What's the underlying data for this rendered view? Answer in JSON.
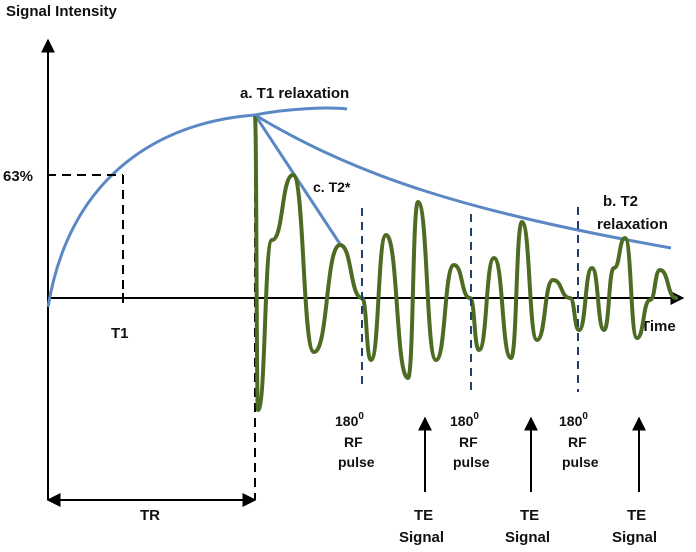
{
  "title": "Signal Intensity",
  "colors": {
    "t1": "#5b88c4",
    "t2": "#5b88c4",
    "fid": "#4e6b23",
    "axis": "#000000",
    "pulse": "#1f3f6e"
  },
  "labels": {
    "y_axis": "Signal Intensity",
    "x_axis": "Time",
    "t1_relax": "a. T1 relaxation",
    "t2_star": "c. T2*",
    "t2_relax_line1": "b. T2",
    "t2_relax_line2": "relaxation",
    "pct": "63%",
    "t1": "T1",
    "tr": "TR"
  },
  "pulses": [
    {
      "deg": "180",
      "sup": "0",
      "line2": "RF",
      "line3": "pulse"
    },
    {
      "deg": "180",
      "sup": "0",
      "line2": "RF",
      "line3": "pulse"
    },
    {
      "deg": "180",
      "sup": "0",
      "line2": "RF",
      "line3": "pulse"
    }
  ],
  "echoes": [
    {
      "line1": "TE",
      "line2": "Signal"
    },
    {
      "line1": "TE",
      "line2": "Signal"
    },
    {
      "line1": "TE",
      "line2": "Signal"
    }
  ]
}
